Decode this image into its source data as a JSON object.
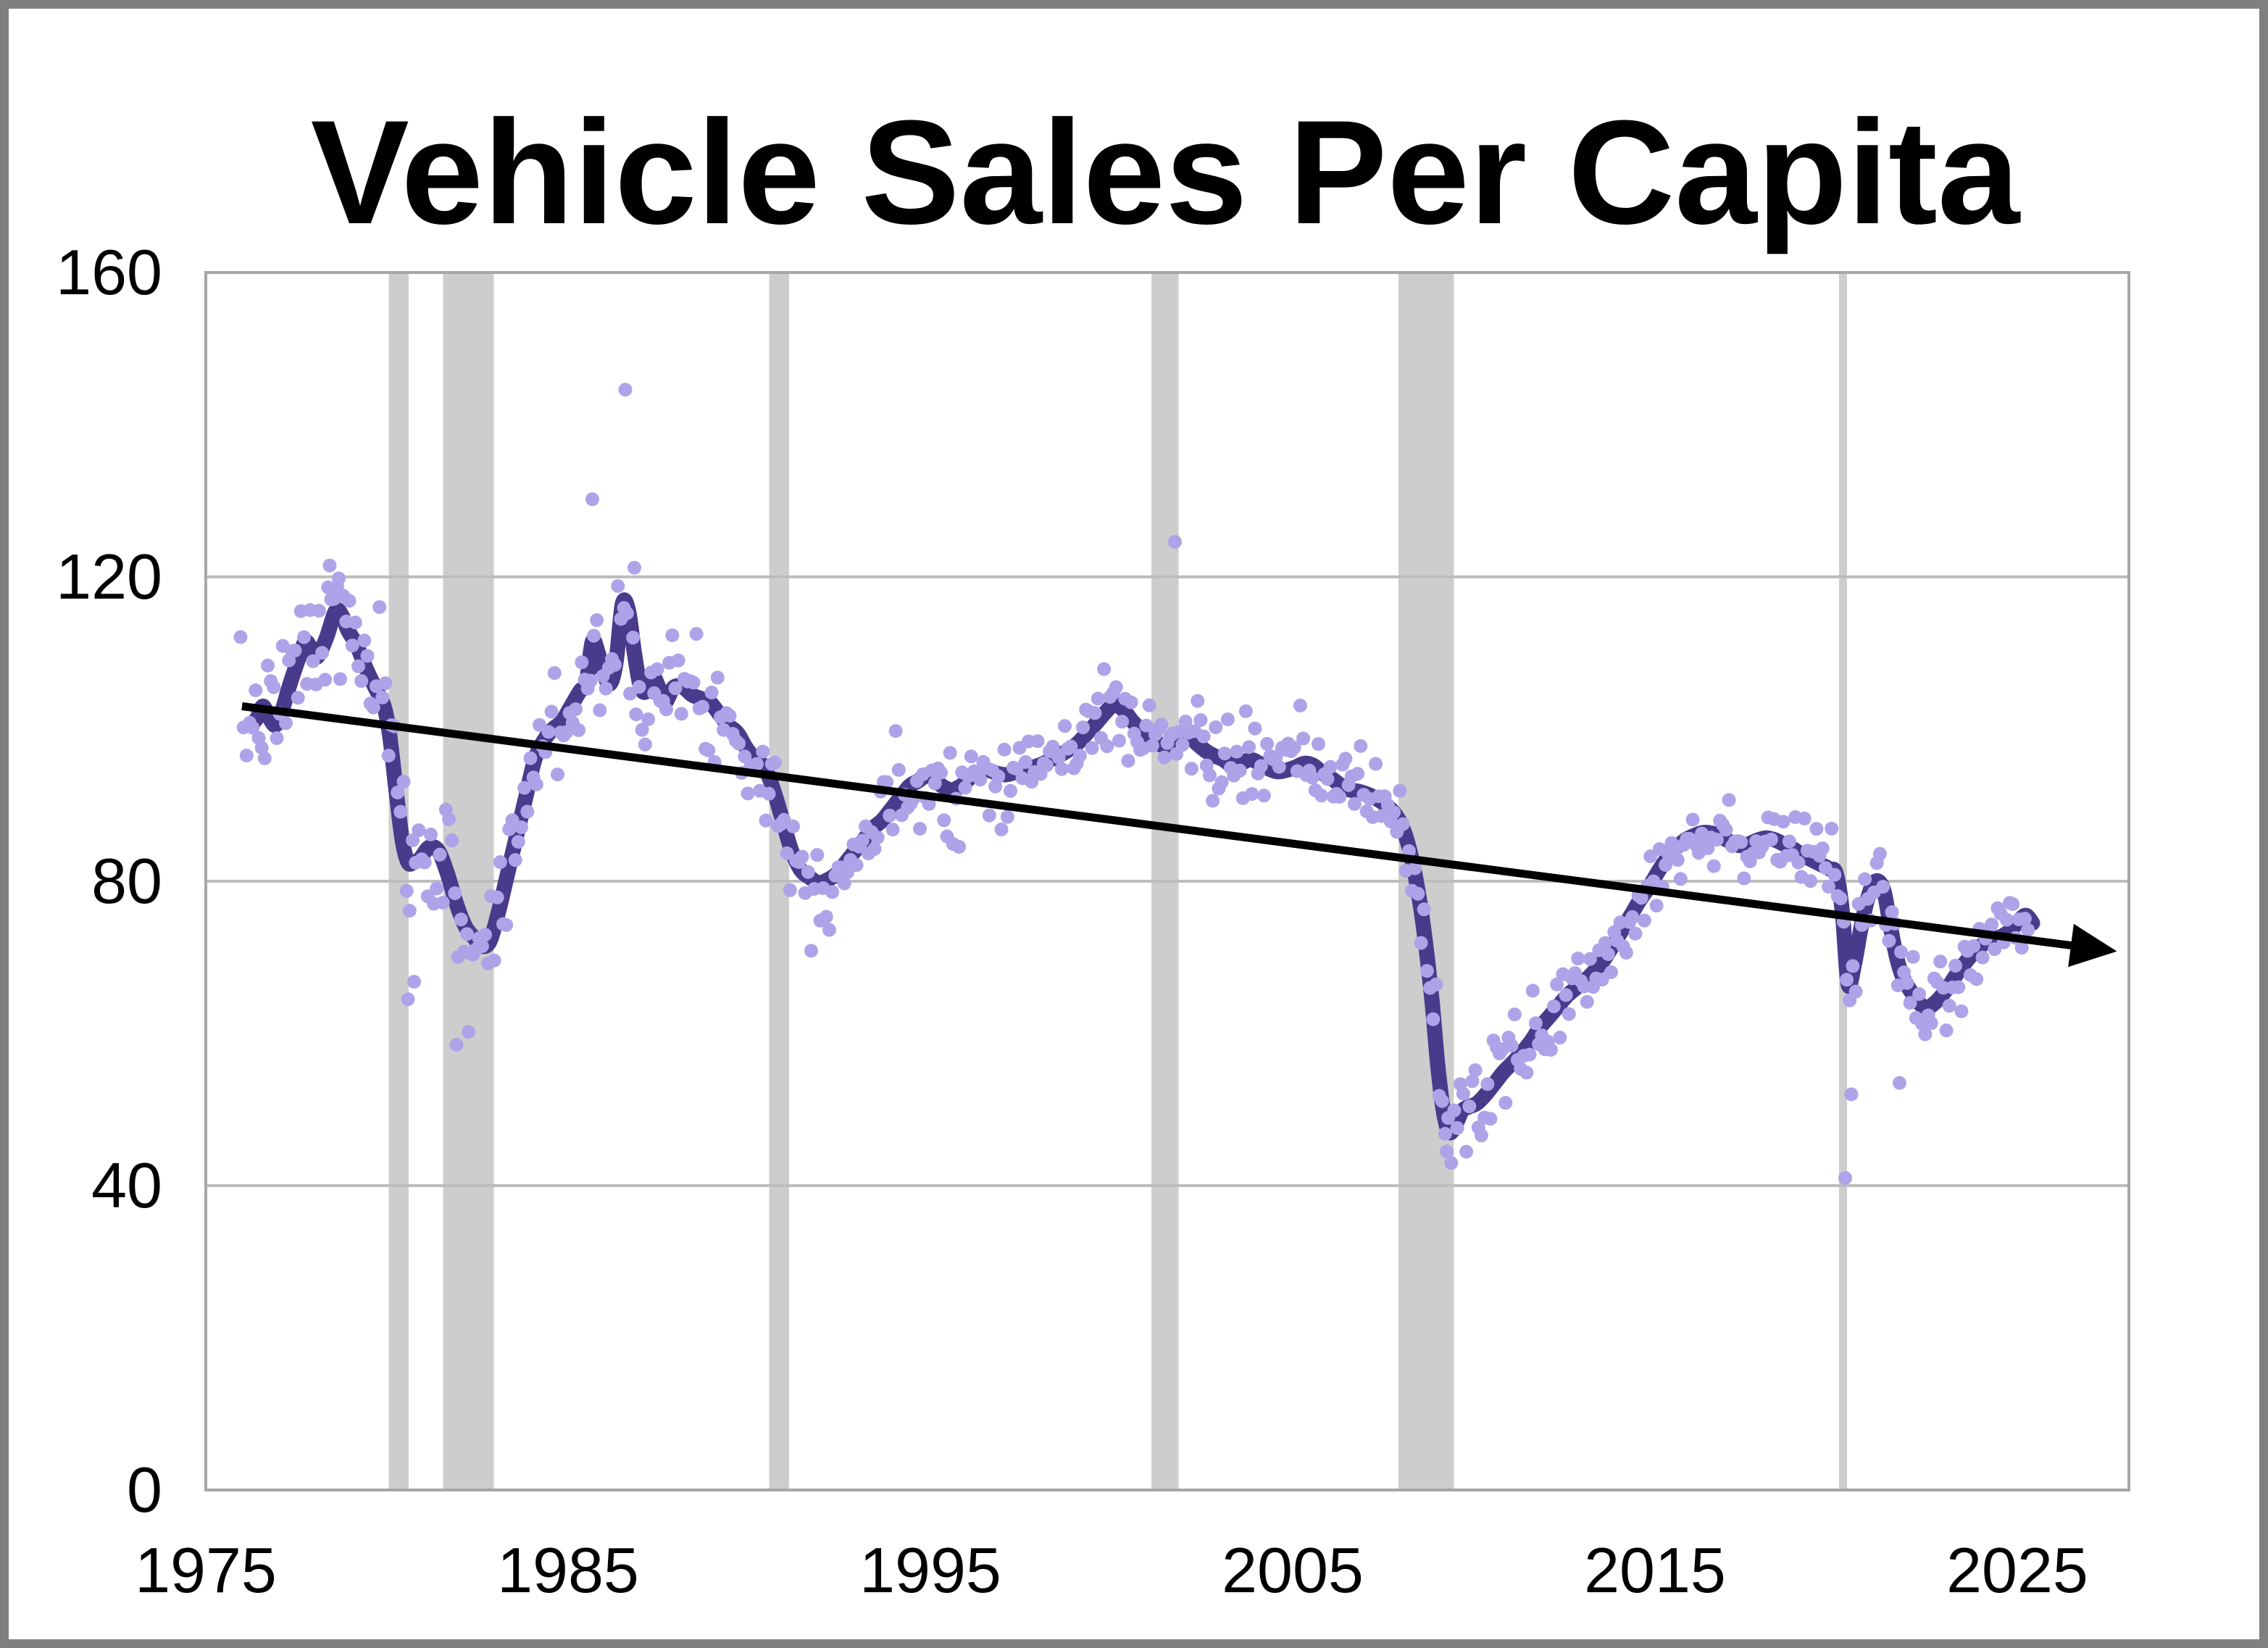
{
  "chart_data": {
    "type": "scatter",
    "title": "Vehicle Sales Per Capita",
    "xlabel": "",
    "ylabel": "",
    "x_axis": {
      "ticks": [
        1975,
        1985,
        1995,
        2005,
        2015,
        2025
      ],
      "range": [
        1975,
        2028.1
      ]
    },
    "y_axis": {
      "ticks": [
        0,
        40,
        80,
        120,
        160
      ],
      "range": [
        0,
        160
      ]
    },
    "grid": "horizontal-only",
    "legend": "none",
    "recession_bands": [
      [
        1980.05,
        1980.6
      ],
      [
        1981.55,
        1982.95
      ],
      [
        1990.55,
        1991.1
      ],
      [
        2001.1,
        2001.85
      ],
      [
        2007.92,
        2009.45
      ],
      [
        2020.08,
        2020.3
      ]
    ],
    "trend_line": {
      "x1": 1976.0,
      "y1": 103.0,
      "x2": 2026.6,
      "y2": 71.5,
      "arrow": true
    },
    "smoothed_series": [
      [
        1976.25,
        100.5
      ],
      [
        1976.42,
        101.5
      ],
      [
        1976.58,
        103
      ],
      [
        1976.75,
        101.5
      ],
      [
        1976.92,
        100.5
      ],
      [
        1977.08,
        102
      ],
      [
        1977.33,
        106
      ],
      [
        1977.58,
        109.5
      ],
      [
        1977.75,
        111.5
      ],
      [
        1977.92,
        110.5
      ],
      [
        1978.08,
        109.5
      ],
      [
        1978.33,
        112
      ],
      [
        1978.58,
        115.5
      ],
      [
        1978.75,
        115
      ],
      [
        1978.92,
        113
      ],
      [
        1979.17,
        111
      ],
      [
        1979.42,
        108
      ],
      [
        1979.67,
        105.5
      ],
      [
        1979.92,
        103
      ],
      [
        1980.08,
        99
      ],
      [
        1980.25,
        92
      ],
      [
        1980.42,
        85.5
      ],
      [
        1980.58,
        82.5
      ],
      [
        1980.75,
        82.5
      ],
      [
        1980.92,
        83
      ],
      [
        1981.17,
        84.5
      ],
      [
        1981.42,
        84
      ],
      [
        1981.67,
        81
      ],
      [
        1981.92,
        77
      ],
      [
        1982.17,
        74
      ],
      [
        1982.42,
        72.5
      ],
      [
        1982.58,
        71.5
      ],
      [
        1982.83,
        72
      ],
      [
        1983.08,
        76
      ],
      [
        1983.33,
        81
      ],
      [
        1983.58,
        86
      ],
      [
        1983.83,
        91
      ],
      [
        1984.08,
        96
      ],
      [
        1984.33,
        98.5
      ],
      [
        1984.58,
        100
      ],
      [
        1984.83,
        101
      ],
      [
        1985.08,
        103
      ],
      [
        1985.33,
        105
      ],
      [
        1985.5,
        106
      ],
      [
        1985.67,
        111.5
      ],
      [
        1985.83,
        110
      ],
      [
        1986.0,
        107
      ],
      [
        1986.17,
        106
      ],
      [
        1986.33,
        109
      ],
      [
        1986.5,
        116.5
      ],
      [
        1986.67,
        115.5
      ],
      [
        1986.83,
        110
      ],
      [
        1987.0,
        105.5
      ],
      [
        1987.17,
        105
      ],
      [
        1987.33,
        107
      ],
      [
        1987.5,
        105.5
      ],
      [
        1987.67,
        103.5
      ],
      [
        1987.92,
        105.5
      ],
      [
        1988.17,
        105.5
      ],
      [
        1988.42,
        104.5
      ],
      [
        1988.67,
        104
      ],
      [
        1988.92,
        103.5
      ],
      [
        1989.17,
        102
      ],
      [
        1989.42,
        100.5
      ],
      [
        1989.67,
        99.5
      ],
      [
        1989.92,
        97.5
      ],
      [
        1990.17,
        96
      ],
      [
        1990.42,
        95
      ],
      [
        1990.67,
        92
      ],
      [
        1990.92,
        88
      ],
      [
        1991.17,
        84
      ],
      [
        1991.42,
        81.5
      ],
      [
        1991.67,
        80.5
      ],
      [
        1991.92,
        79.8
      ],
      [
        1992.17,
        80.2
      ],
      [
        1992.42,
        81
      ],
      [
        1992.67,
        82.5
      ],
      [
        1992.92,
        84
      ],
      [
        1993.17,
        85.5
      ],
      [
        1993.42,
        87
      ],
      [
        1993.67,
        88
      ],
      [
        1993.92,
        89.5
      ],
      [
        1994.17,
        91
      ],
      [
        1994.42,
        92.5
      ],
      [
        1994.67,
        93.2
      ],
      [
        1994.92,
        94
      ],
      [
        1995.08,
        93.5
      ],
      [
        1995.33,
        92.5
      ],
      [
        1995.58,
        92
      ],
      [
        1995.83,
        92.5
      ],
      [
        1996.08,
        93.5
      ],
      [
        1996.33,
        94.3
      ],
      [
        1996.58,
        94.6
      ],
      [
        1996.83,
        94.2
      ],
      [
        1997.08,
        94
      ],
      [
        1997.33,
        94.3
      ],
      [
        1997.58,
        94.8
      ],
      [
        1997.83,
        95
      ],
      [
        1998.08,
        95.4
      ],
      [
        1998.33,
        96
      ],
      [
        1998.58,
        96.6
      ],
      [
        1998.83,
        97.3
      ],
      [
        1999.08,
        98.2
      ],
      [
        1999.33,
        99.5
      ],
      [
        1999.58,
        100.8
      ],
      [
        1999.83,
        102.2
      ],
      [
        2000.08,
        103.2
      ],
      [
        2000.33,
        102.5
      ],
      [
        2000.58,
        101
      ],
      [
        2000.83,
        99.8
      ],
      [
        2001.08,
        98.8
      ],
      [
        2001.33,
        98
      ],
      [
        2001.58,
        97.8
      ],
      [
        2001.83,
        99
      ],
      [
        2002.08,
        99.3
      ],
      [
        2002.33,
        98.2
      ],
      [
        2002.58,
        97.2
      ],
      [
        2002.83,
        96.5
      ],
      [
        2003.08,
        96
      ],
      [
        2003.33,
        95.2
      ],
      [
        2003.58,
        95.5
      ],
      [
        2003.83,
        96
      ],
      [
        2004.08,
        95.5
      ],
      [
        2004.33,
        94.8
      ],
      [
        2004.58,
        94.4
      ],
      [
        2004.83,
        94.6
      ],
      [
        2005.08,
        95
      ],
      [
        2005.33,
        95.5
      ],
      [
        2005.58,
        95.2
      ],
      [
        2005.83,
        94.2
      ],
      [
        2006.08,
        93.5
      ],
      [
        2006.33,
        92.6
      ],
      [
        2006.58,
        92
      ],
      [
        2006.83,
        91.8
      ],
      [
        2007.08,
        91.4
      ],
      [
        2007.33,
        90.8
      ],
      [
        2007.58,
        90
      ],
      [
        2007.83,
        88.8
      ],
      [
        2008.08,
        86.5
      ],
      [
        2008.33,
        82
      ],
      [
        2008.58,
        75
      ],
      [
        2008.83,
        65
      ],
      [
        2009.0,
        56
      ],
      [
        2009.17,
        49.5
      ],
      [
        2009.33,
        47
      ],
      [
        2009.5,
        48
      ],
      [
        2009.67,
        49.8
      ],
      [
        2009.83,
        50.3
      ],
      [
        2010.08,
        50.8
      ],
      [
        2010.33,
        52
      ],
      [
        2010.58,
        53.5
      ],
      [
        2010.83,
        55
      ],
      [
        2011.08,
        56.2
      ],
      [
        2011.33,
        57.5
      ],
      [
        2011.58,
        59
      ],
      [
        2011.83,
        60.8
      ],
      [
        2012.08,
        62.2
      ],
      [
        2012.33,
        63.6
      ],
      [
        2012.58,
        65
      ],
      [
        2012.83,
        66
      ],
      [
        2013.08,
        67
      ],
      [
        2013.33,
        68.2
      ],
      [
        2013.58,
        69.6
      ],
      [
        2013.83,
        71.5
      ],
      [
        2014.08,
        73.5
      ],
      [
        2014.33,
        75.5
      ],
      [
        2014.58,
        77.5
      ],
      [
        2014.83,
        79.2
      ],
      [
        2015.08,
        81.2
      ],
      [
        2015.33,
        83
      ],
      [
        2015.58,
        84.4
      ],
      [
        2015.83,
        85.4
      ],
      [
        2016.08,
        86
      ],
      [
        2016.33,
        86.4
      ],
      [
        2016.58,
        86.3
      ],
      [
        2016.83,
        85.8
      ],
      [
        2017.08,
        85.2
      ],
      [
        2017.33,
        84.7
      ],
      [
        2017.58,
        84.9
      ],
      [
        2017.83,
        85.4
      ],
      [
        2018.08,
        85.7
      ],
      [
        2018.33,
        85.4
      ],
      [
        2018.58,
        84.8
      ],
      [
        2018.83,
        84.2
      ],
      [
        2019.08,
        83.4
      ],
      [
        2019.33,
        82.8
      ],
      [
        2019.58,
        82.2
      ],
      [
        2019.83,
        81.6
      ],
      [
        2020.0,
        81
      ],
      [
        2020.17,
        76
      ],
      [
        2020.33,
        66.5
      ],
      [
        2020.5,
        69
      ],
      [
        2020.67,
        73.5
      ],
      [
        2020.83,
        77
      ],
      [
        2021.0,
        79.5
      ],
      [
        2021.17,
        80
      ],
      [
        2021.33,
        78.5
      ],
      [
        2021.5,
        74
      ],
      [
        2021.67,
        70
      ],
      [
        2021.83,
        67.5
      ],
      [
        2022.0,
        66
      ],
      [
        2022.17,
        64.8
      ],
      [
        2022.33,
        63.8
      ],
      [
        2022.5,
        63.3
      ],
      [
        2022.67,
        63.8
      ],
      [
        2022.83,
        64.5
      ],
      [
        2023.08,
        66
      ],
      [
        2023.33,
        67.8
      ],
      [
        2023.58,
        69.4
      ],
      [
        2023.83,
        70.8
      ],
      [
        2024.08,
        71.8
      ],
      [
        2024.33,
        72.4
      ],
      [
        2024.58,
        72.8
      ],
      [
        2024.83,
        73.6
      ],
      [
        2025.08,
        75
      ],
      [
        2025.25,
        75.5
      ],
      [
        2025.42,
        74.5
      ]
    ],
    "scatter_generation": {
      "note": "monthly dots = smoothed_series value + gaussian jitter",
      "start": 1975.96,
      "end": 2025.37,
      "step_years": 0.08333,
      "seed": 7,
      "jitter_sd_segments": [
        [
          1987,
          4.2
        ],
        [
          1996,
          3.4
        ],
        [
          2008,
          2.8
        ],
        [
          2013,
          3.2
        ],
        [
          2020,
          2.2
        ],
        [
          2022,
          3.8
        ],
        [
          2026,
          2.6
        ]
      ],
      "outlier_points": [
        [
          1978.42,
          121.5
        ],
        [
          1978.67,
          119.8
        ],
        [
          1980.58,
          64.5
        ],
        [
          1980.75,
          66.8
        ],
        [
          1981.92,
          58.5
        ],
        [
          1982.25,
          60.2
        ],
        [
          1985.67,
          130.2
        ],
        [
          1986.58,
          144.6
        ],
        [
          1986.83,
          121.2
        ],
        [
          2001.75,
          124.6
        ],
        [
          2009.25,
          44.5
        ],
        [
          2020.25,
          41.0
        ],
        [
          2020.42,
          52.0
        ],
        [
          2021.75,
          53.5
        ]
      ]
    },
    "colors": {
      "scatter_dot": "#aea3e8",
      "smoothed_line": "#4a3a8c",
      "trend_line": "#000000",
      "recession_band": "#cdcdcd",
      "gridline": "#bdbdbd",
      "plot_frame": "#a6a6a6",
      "figure_border": "#7f7f7f",
      "background": "#ffffff",
      "text": "#000000"
    }
  }
}
